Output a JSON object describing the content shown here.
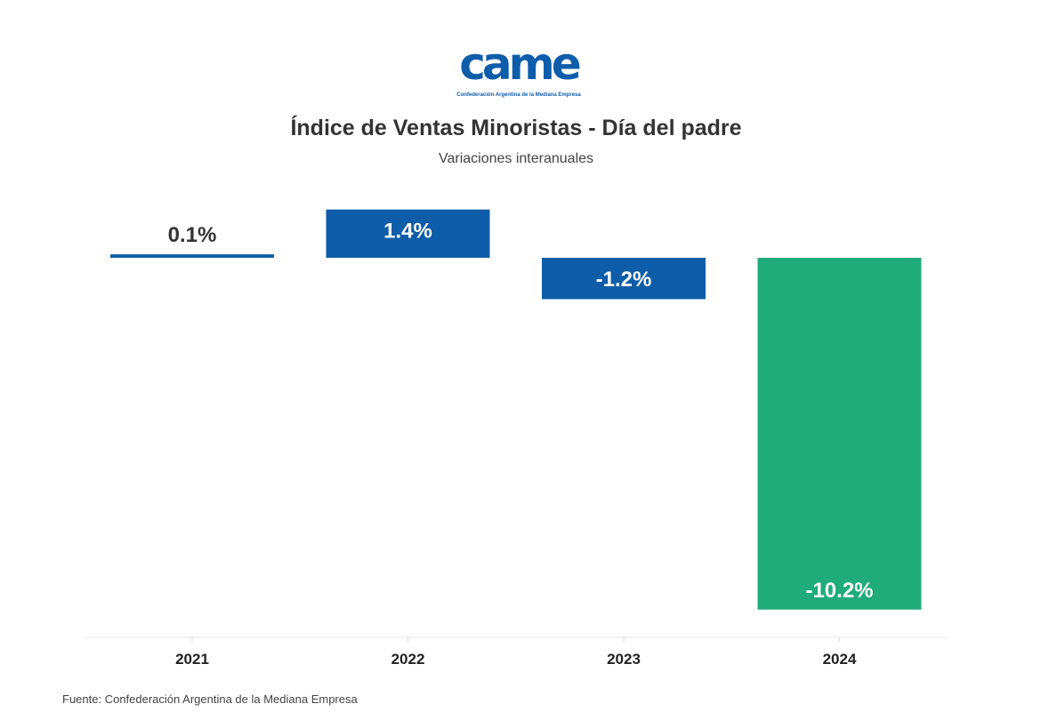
{
  "logo": {
    "mark": "came",
    "tagline": "Confederación Argentina de la Mediana Empresa"
  },
  "chart_data": {
    "type": "bar",
    "title": "Índice de Ventas Minoristas - Día del padre",
    "subtitle": "Variaciones interanuales",
    "categories": [
      "2021",
      "2022",
      "2023",
      "2024"
    ],
    "values": [
      0.1,
      1.4,
      -1.2,
      -10.2
    ],
    "data_labels": [
      "0.1%",
      "1.4%",
      "-1.2%",
      "-10.2%"
    ],
    "colors": [
      "#0E5DA8",
      "#0E5DA8",
      "#0E5DA8",
      "#20AC7A"
    ],
    "xlabel": "",
    "ylabel": "",
    "grid": false
  },
  "source": "Fuente: Confederación Argentina de la Mediana Empresa"
}
